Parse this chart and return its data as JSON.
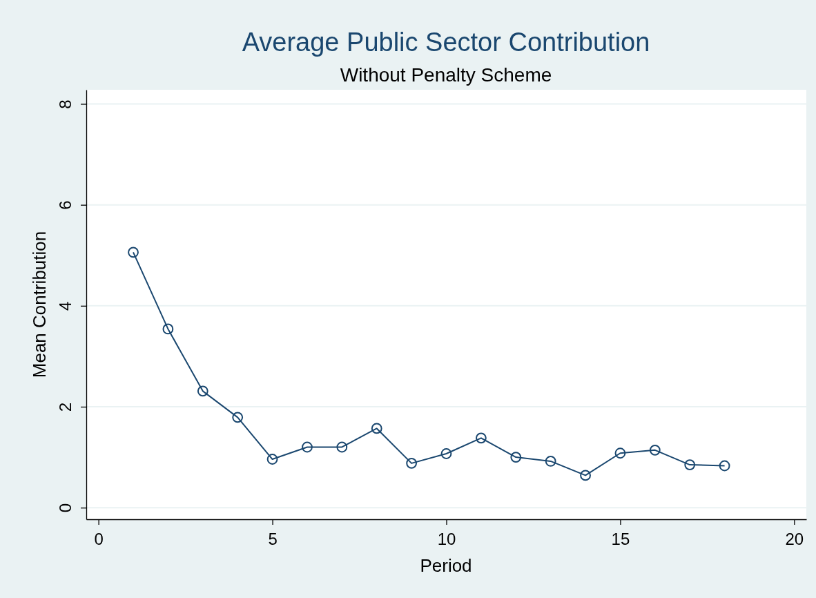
{
  "chart_data": {
    "type": "line",
    "title": "Average Public Sector Contribution",
    "subtitle": "Without Penalty Scheme",
    "xlabel": "Period",
    "ylabel": "Mean Contribution",
    "x": [
      1,
      2,
      3,
      4,
      5,
      6,
      7,
      8,
      9,
      10,
      11,
      12,
      13,
      14,
      15,
      16,
      17,
      18
    ],
    "series": [
      {
        "color": "#1a476f",
        "values": [
          5.06,
          3.54,
          2.31,
          1.79,
          0.96,
          1.2,
          1.2,
          1.57,
          0.88,
          1.07,
          1.38,
          1.0,
          0.92,
          0.64,
          1.08,
          1.14,
          0.85,
          0.83
        ]
      }
    ],
    "xlim": [
      -0.35,
      20.35
    ],
    "xticks": [
      0,
      5,
      10,
      15,
      20
    ],
    "ylim": [
      -0.23,
      8.28
    ],
    "yticks": [
      0,
      2,
      4,
      6,
      8
    ],
    "grid": "y",
    "marker": "circle",
    "line_style": "solid"
  }
}
